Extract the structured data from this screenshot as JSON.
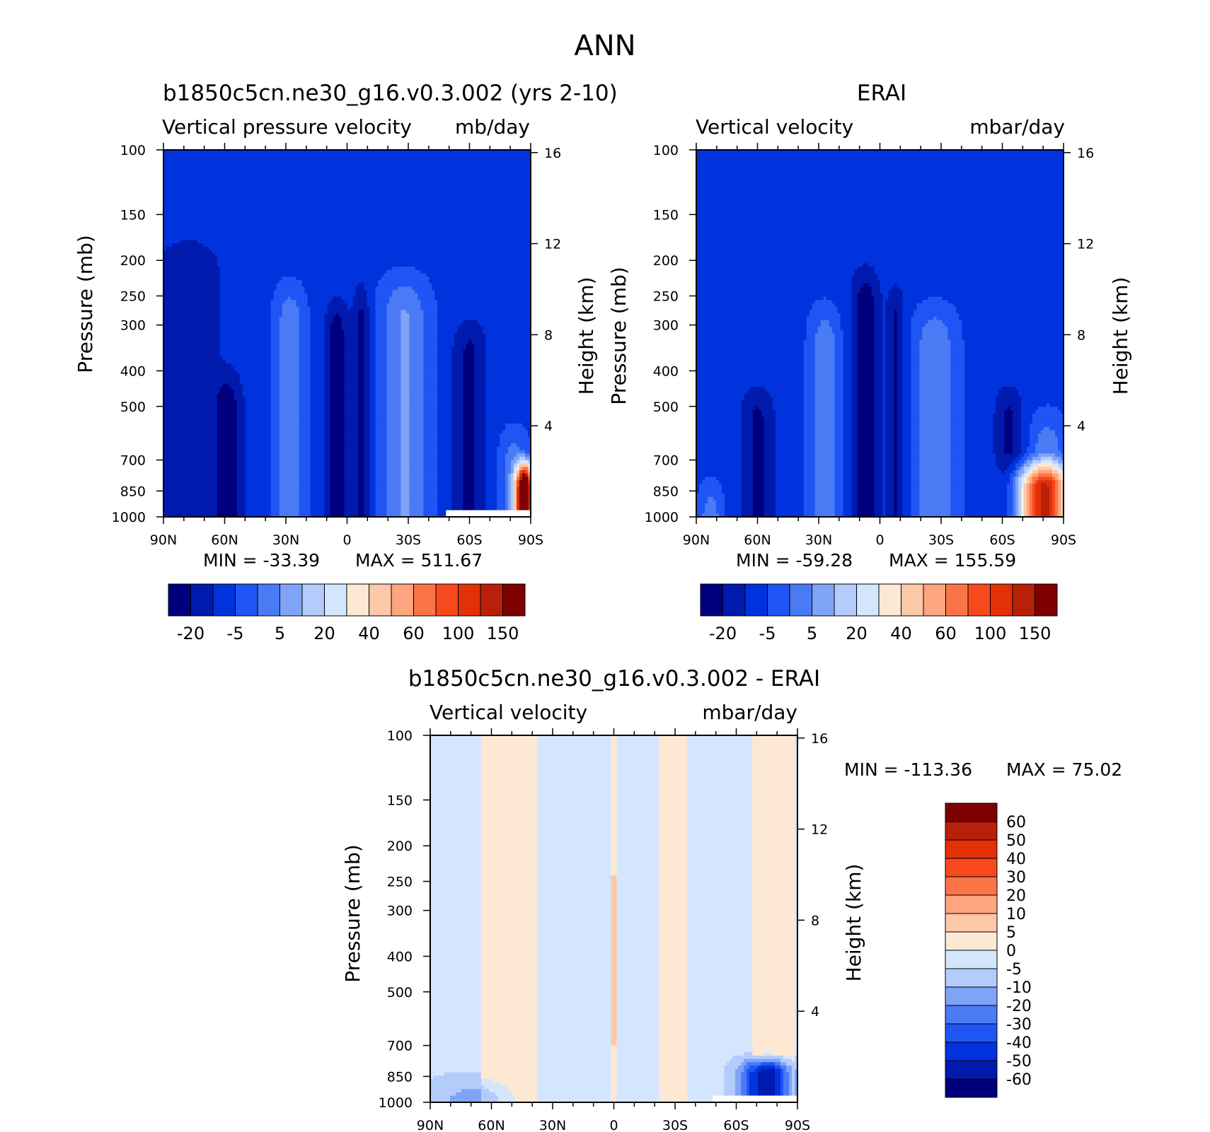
{
  "figure_title": "ANN",
  "colors": {
    "blue_scale": [
      "#00007f",
      "#001aae",
      "#0033dd",
      "#1f55f5",
      "#4a7bf5",
      "#7fa4f7",
      "#b3ccfb",
      "#d4e6fd"
    ],
    "red_scale": [
      "#fde8d4",
      "#fcc8a8",
      "#fca57e",
      "#fb7447",
      "#f8491d",
      "#e23008",
      "#b8200a",
      "#7f0000"
    ],
    "missing": "#ffffff"
  },
  "chart_data": [
    {
      "id": "model",
      "type": "heatmap",
      "title": "b1850c5cn.ne30_g16.v0.3.002 (yrs 2-10)",
      "subtitle_left": "Vertical pressure velocity",
      "units": "mb/day",
      "xlabel": "",
      "ylabel": "Pressure (mb)",
      "ylabel_right": "Height (km)",
      "x_ticks": [
        "90N",
        "60N",
        "30N",
        "0",
        "30S",
        "60S",
        "90S"
      ],
      "x_range": [
        90,
        -90
      ],
      "y_ticks": [
        100,
        150,
        200,
        250,
        300,
        400,
        500,
        700,
        850,
        1000
      ],
      "y_range": [
        100,
        1000
      ],
      "y_right_ticks": [
        16,
        12,
        8,
        4
      ],
      "min_label": "MIN = -33.39",
      "max_label": "MAX = 511.67",
      "colorbar_labels": [
        "-20",
        "-5",
        "5",
        "20",
        "40",
        "60",
        "100",
        "150"
      ],
      "colorbar_levels": [
        -20,
        -10,
        -5,
        0,
        5,
        10,
        20,
        30,
        40,
        50,
        60,
        80,
        100,
        120,
        150
      ],
      "ascent_bands": [
        {
          "lat": 78,
          "width": 12,
          "top": 150,
          "strength": 0.7
        },
        {
          "lat": 58,
          "width": 5,
          "top": 350,
          "strength": 0.85
        },
        {
          "lat": 5,
          "width": 4,
          "top": 220,
          "strength": 1.0
        },
        {
          "lat": -7,
          "width": 3,
          "top": 200,
          "strength": 0.85
        },
        {
          "lat": -60,
          "width": 6,
          "top": 250,
          "strength": 0.85
        }
      ],
      "descent_bands": [
        {
          "lat": 28,
          "width": 5,
          "top": 200,
          "strength": 0.6
        },
        {
          "lat": -28,
          "width": 8,
          "top": 190,
          "strength": 0.7
        },
        {
          "lat": -82,
          "width": 5,
          "top": 500,
          "strength": 0.6
        }
      ],
      "polar_hotspot": {
        "lat": -87,
        "width": 3,
        "top": 650,
        "strength": 2.5
      },
      "missing_box": {
        "lat_from": -48,
        "lat_to": -90,
        "p_from": 950,
        "p_to": 1000
      }
    },
    {
      "id": "obs",
      "type": "heatmap",
      "title": "ERAI",
      "subtitle_left": "Vertical velocity",
      "units": "mbar/day",
      "xlabel": "",
      "ylabel": "Pressure (mb)",
      "ylabel_right": "Height (km)",
      "x_ticks": [
        "90N",
        "60N",
        "30N",
        "0",
        "30S",
        "60S",
        "90S"
      ],
      "x_range": [
        90,
        -90
      ],
      "y_ticks": [
        100,
        150,
        200,
        250,
        300,
        400,
        500,
        700,
        850,
        1000
      ],
      "y_range": [
        100,
        1000
      ],
      "y_right_ticks": [
        16,
        12,
        8,
        4
      ],
      "min_label": "MIN = -59.28",
      "max_label": "MAX = 155.59",
      "colorbar_labels": [
        "-20",
        "-5",
        "5",
        "20",
        "40",
        "60",
        "100",
        "150"
      ],
      "colorbar_levels": [
        -20,
        -10,
        -5,
        0,
        5,
        10,
        20,
        30,
        40,
        50,
        60,
        80,
        100,
        120,
        150
      ],
      "ascent_bands": [
        {
          "lat": 60,
          "width": 6,
          "top": 380,
          "strength": 0.85
        },
        {
          "lat": 7,
          "width": 5,
          "top": 180,
          "strength": 1.0
        },
        {
          "lat": -8,
          "width": 3,
          "top": 200,
          "strength": 0.8
        },
        {
          "lat": -63,
          "width": 5,
          "top": 380,
          "strength": 0.85
        }
      ],
      "descent_bands": [
        {
          "lat": 83,
          "width": 4,
          "top": 700,
          "strength": 0.6
        },
        {
          "lat": 27,
          "width": 5,
          "top": 230,
          "strength": 0.6
        },
        {
          "lat": -27,
          "width": 7,
          "top": 230,
          "strength": 0.65
        },
        {
          "lat": -82,
          "width": 6,
          "top": 450,
          "strength": 0.6
        }
      ],
      "polar_hotspot": {
        "lat": -80,
        "width": 10,
        "top": 650,
        "strength": 1.6
      },
      "missing_box": null
    },
    {
      "id": "diff",
      "type": "heatmap",
      "title": "b1850c5cn.ne30_g16.v0.3.002 - ERAI",
      "subtitle_left": "Vertical velocity",
      "units": "mbar/day",
      "xlabel": "",
      "ylabel": "Pressure (mb)",
      "ylabel_right": "Height (km)",
      "x_ticks": [
        "90N",
        "60N",
        "30N",
        "0",
        "30S",
        "60S",
        "90S"
      ],
      "x_range": [
        90,
        -90
      ],
      "y_ticks": [
        100,
        150,
        200,
        250,
        300,
        400,
        500,
        700,
        850,
        1000
      ],
      "y_range": [
        100,
        1000
      ],
      "y_right_ticks": [
        16,
        12,
        8,
        4
      ],
      "min_label": "MIN = -113.36",
      "max_label": "MAX =   75.02",
      "colorbar_labels": [
        "60",
        "50",
        "40",
        "30",
        "20",
        "10",
        "5",
        "0",
        "-5",
        "-10",
        "-20",
        "-30",
        "-40",
        "-50",
        "-60"
      ],
      "colorbar_levels": [
        -60,
        -50,
        -40,
        -30,
        -20,
        -10,
        -5,
        0,
        5,
        10,
        20,
        30,
        40,
        50,
        60
      ],
      "positive_bands": [
        {
          "lat_from": 65,
          "lat_to": 38,
          "top": 100
        },
        {
          "lat_from": 2,
          "lat_to": -2,
          "top": 100
        },
        {
          "lat_from": -22,
          "lat_to": -36,
          "top": 100
        },
        {
          "lat_from": -68,
          "lat_to": -88,
          "top": 100
        }
      ],
      "strong_positive": {
        "lat": 0,
        "width": 2,
        "p_from": 240,
        "p_to": 700
      },
      "negative_hotspot": {
        "lat": -75,
        "width": 8,
        "p_from": 720,
        "p_to": 1000
      },
      "missing_box": {
        "lat_from": -48,
        "lat_to": -90,
        "p_from": 950,
        "p_to": 1000
      }
    }
  ]
}
